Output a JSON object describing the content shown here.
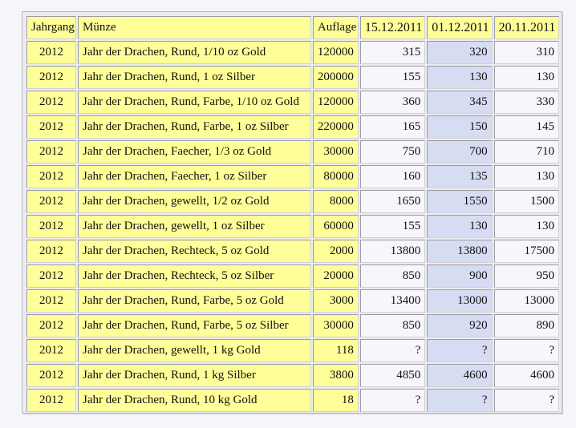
{
  "table": {
    "headers": {
      "jahrgang": "Jahrgang",
      "muenze": "Münze",
      "auflage": "Auflage",
      "date1": "15.12.2011",
      "date2": "01.12.2011",
      "date3": "20.11.2011"
    },
    "rows": [
      {
        "jahrgang": "2012",
        "muenze": "Jahr der Drachen, Rund, 1/10 oz Gold",
        "auflage": "120000",
        "p1": "315",
        "p2": "320",
        "p3": "310"
      },
      {
        "jahrgang": "2012",
        "muenze": "Jahr der Drachen, Rund, 1 oz Silber",
        "auflage": "200000",
        "p1": "155",
        "p2": "130",
        "p3": "130"
      },
      {
        "jahrgang": "2012",
        "muenze": "Jahr der Drachen, Rund, Farbe, 1/10 oz Gold",
        "auflage": "120000",
        "p1": "360",
        "p2": "345",
        "p3": "330"
      },
      {
        "jahrgang": "2012",
        "muenze": "Jahr der Drachen, Rund, Farbe, 1 oz Silber",
        "auflage": "220000",
        "p1": "165",
        "p2": "150",
        "p3": "145"
      },
      {
        "jahrgang": "2012",
        "muenze": "Jahr der Drachen, Faecher, 1/3 oz Gold",
        "auflage": "30000",
        "p1": "750",
        "p2": "700",
        "p3": "710"
      },
      {
        "jahrgang": "2012",
        "muenze": "Jahr der Drachen, Faecher, 1 oz Silber",
        "auflage": "80000",
        "p1": "160",
        "p2": "135",
        "p3": "130"
      },
      {
        "jahrgang": "2012",
        "muenze": "Jahr der Drachen, gewellt, 1/2 oz Gold",
        "auflage": "8000",
        "p1": "1650",
        "p2": "1550",
        "p3": "1500"
      },
      {
        "jahrgang": "2012",
        "muenze": "Jahr der Drachen, gewellt, 1 oz Silber",
        "auflage": "60000",
        "p1": "155",
        "p2": "130",
        "p3": "130"
      },
      {
        "jahrgang": "2012",
        "muenze": "Jahr der Drachen, Rechteck, 5 oz Gold",
        "auflage": "2000",
        "p1": "13800",
        "p2": "13800",
        "p3": "17500"
      },
      {
        "jahrgang": "2012",
        "muenze": "Jahr der Drachen, Rechteck, 5 oz Silber",
        "auflage": "20000",
        "p1": "850",
        "p2": "900",
        "p3": "950"
      },
      {
        "jahrgang": "2012",
        "muenze": "Jahr der Drachen, Rund, Farbe, 5 oz Gold",
        "auflage": "3000",
        "p1": "13400",
        "p2": "13000",
        "p3": "13000"
      },
      {
        "jahrgang": "2012",
        "muenze": "Jahr der Drachen, Rund, Farbe, 5 oz Silber",
        "auflage": "30000",
        "p1": "850",
        "p2": "920",
        "p3": "890"
      },
      {
        "jahrgang": "2012",
        "muenze": "Jahr der Drachen, gewellt, 1 kg Gold",
        "auflage": "118",
        "p1": "?",
        "p2": "?",
        "p3": "?"
      },
      {
        "jahrgang": "2012",
        "muenze": "Jahr der Drachen, Rund, 1 kg Silber",
        "auflage": "3800",
        "p1": "4850",
        "p2": "4600",
        "p3": "4600"
      },
      {
        "jahrgang": "2012",
        "muenze": "Jahr der Drachen, Rund, 10 kg Gold",
        "auflage": "18",
        "p1": "?",
        "p2": "?",
        "p3": "?"
      }
    ]
  },
  "colors": {
    "yellow_cell": "#ffff99",
    "white_cell": "#f7f7fb",
    "blue_cell": "#d6dcf2"
  }
}
